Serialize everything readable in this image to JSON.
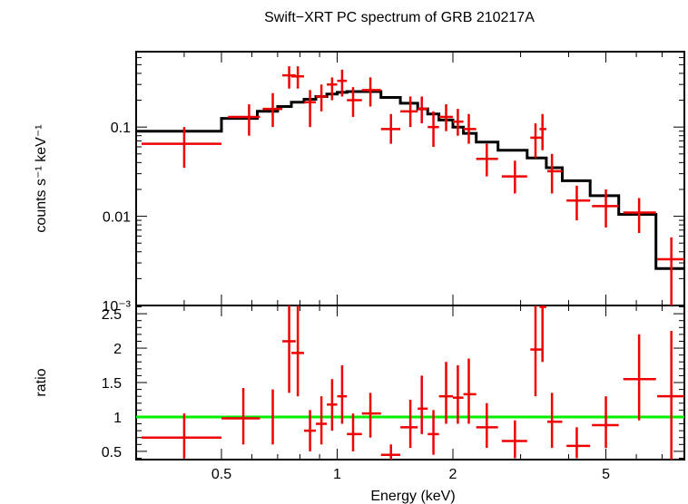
{
  "colors": {
    "data": "#ee0000",
    "model": "#000000",
    "unity": "#00ee00",
    "axes": "#000000"
  },
  "chart_data": [
    {
      "type": "scatter",
      "title": "Swift−XRT PC spectrum of GRB 210217A",
      "ylabel": "counts s⁻¹ keV⁻¹",
      "yscale": "log",
      "xscale": "log",
      "xlim": [
        0.3,
        8.0
      ],
      "ylim": [
        0.001,
        0.7
      ],
      "yticks": [
        {
          "value": 0.1,
          "label": "0.1"
        },
        {
          "value": 0.01,
          "label": "0.01"
        },
        {
          "value": 0.001,
          "label": "10⁻³"
        }
      ],
      "series": [
        {
          "kind": "data",
          "points": [
            {
              "x": 0.4,
              "xlo": 0.31,
              "xhi": 0.5,
              "y": 0.065,
              "ylo": 0.035,
              "yhi": 0.1
            },
            {
              "x": 0.59,
              "xlo": 0.52,
              "xhi": 0.63,
              "y": 0.13,
              "ylo": 0.08,
              "yhi": 0.18
            },
            {
              "x": 0.68,
              "xlo": 0.64,
              "xhi": 0.72,
              "y": 0.16,
              "ylo": 0.1,
              "yhi": 0.24
            },
            {
              "x": 0.75,
              "xlo": 0.72,
              "xhi": 0.78,
              "y": 0.38,
              "ylo": 0.27,
              "yhi": 0.48
            },
            {
              "x": 0.79,
              "xlo": 0.76,
              "xhi": 0.82,
              "y": 0.37,
              "ylo": 0.27,
              "yhi": 0.48
            },
            {
              "x": 0.85,
              "xlo": 0.82,
              "xhi": 0.88,
              "y": 0.19,
              "ylo": 0.1,
              "yhi": 0.26
            },
            {
              "x": 0.91,
              "xlo": 0.88,
              "xhi": 0.94,
              "y": 0.22,
              "ylo": 0.15,
              "yhi": 0.3
            },
            {
              "x": 0.97,
              "xlo": 0.94,
              "xhi": 1.0,
              "y": 0.3,
              "ylo": 0.2,
              "yhi": 0.36
            },
            {
              "x": 1.03,
              "xlo": 1.0,
              "xhi": 1.06,
              "y": 0.33,
              "ylo": 0.22,
              "yhi": 0.44
            },
            {
              "x": 1.1,
              "xlo": 1.06,
              "xhi": 1.16,
              "y": 0.2,
              "ylo": 0.13,
              "yhi": 0.28
            },
            {
              "x": 1.22,
              "xlo": 1.16,
              "xhi": 1.3,
              "y": 0.26,
              "ylo": 0.17,
              "yhi": 0.36
            },
            {
              "x": 1.38,
              "xlo": 1.3,
              "xhi": 1.46,
              "y": 0.095,
              "ylo": 0.065,
              "yhi": 0.14
            },
            {
              "x": 1.55,
              "xlo": 1.46,
              "xhi": 1.62,
              "y": 0.15,
              "ylo": 0.1,
              "yhi": 0.22
            },
            {
              "x": 1.66,
              "xlo": 1.62,
              "xhi": 1.72,
              "y": 0.16,
              "ylo": 0.11,
              "yhi": 0.22
            },
            {
              "x": 1.78,
              "xlo": 1.72,
              "xhi": 1.84,
              "y": 0.1,
              "ylo": 0.06,
              "yhi": 0.15
            },
            {
              "x": 1.92,
              "xlo": 1.84,
              "xhi": 2.0,
              "y": 0.13,
              "ylo": 0.09,
              "yhi": 0.18
            },
            {
              "x": 2.06,
              "xlo": 2.0,
              "xhi": 2.13,
              "y": 0.115,
              "ylo": 0.08,
              "yhi": 0.16
            },
            {
              "x": 2.2,
              "xlo": 2.13,
              "xhi": 2.3,
              "y": 0.095,
              "ylo": 0.065,
              "yhi": 0.14
            },
            {
              "x": 2.45,
              "xlo": 2.3,
              "xhi": 2.62,
              "y": 0.044,
              "ylo": 0.028,
              "yhi": 0.065
            },
            {
              "x": 2.9,
              "xlo": 2.68,
              "xhi": 3.12,
              "y": 0.028,
              "ylo": 0.018,
              "yhi": 0.042
            },
            {
              "x": 3.28,
              "xlo": 3.18,
              "xhi": 3.4,
              "y": 0.076,
              "ylo": 0.045,
              "yhi": 0.11
            },
            {
              "x": 3.42,
              "xlo": 3.36,
              "xhi": 3.5,
              "y": 0.095,
              "ylo": 0.055,
              "yhi": 0.14
            },
            {
              "x": 3.62,
              "xlo": 3.52,
              "xhi": 3.85,
              "y": 0.032,
              "ylo": 0.018,
              "yhi": 0.05
            },
            {
              "x": 4.2,
              "xlo": 3.95,
              "xhi": 4.55,
              "y": 0.015,
              "ylo": 0.009,
              "yhi": 0.022
            },
            {
              "x": 5.0,
              "xlo": 4.6,
              "xhi": 5.4,
              "y": 0.013,
              "ylo": 0.0075,
              "yhi": 0.02
            },
            {
              "x": 6.1,
              "xlo": 5.55,
              "xhi": 6.75,
              "y": 0.011,
              "ylo": 0.0065,
              "yhi": 0.016
            },
            {
              "x": 7.4,
              "xlo": 6.8,
              "xhi": 8.0,
              "y": 0.0033,
              "ylo": 0.001,
              "yhi": 0.0058
            }
          ]
        },
        {
          "kind": "model-step",
          "steps": [
            {
              "x0": 0.3,
              "x1": 0.5,
              "y": 0.09
            },
            {
              "x0": 0.5,
              "x1": 0.62,
              "y": 0.125
            },
            {
              "x0": 0.62,
              "x1": 0.7,
              "y": 0.15
            },
            {
              "x0": 0.7,
              "x1": 0.76,
              "y": 0.17
            },
            {
              "x0": 0.76,
              "x1": 0.82,
              "y": 0.19
            },
            {
              "x0": 0.82,
              "x1": 0.88,
              "y": 0.205
            },
            {
              "x0": 0.88,
              "x1": 0.94,
              "y": 0.22
            },
            {
              "x0": 0.94,
              "x1": 1.0,
              "y": 0.235
            },
            {
              "x0": 1.0,
              "x1": 1.06,
              "y": 0.245
            },
            {
              "x0": 1.06,
              "x1": 1.3,
              "y": 0.25
            },
            {
              "x0": 1.3,
              "x1": 1.46,
              "y": 0.215
            },
            {
              "x0": 1.46,
              "x1": 1.62,
              "y": 0.185
            },
            {
              "x0": 1.62,
              "x1": 1.72,
              "y": 0.16
            },
            {
              "x0": 1.72,
              "x1": 1.84,
              "y": 0.14
            },
            {
              "x0": 1.84,
              "x1": 2.0,
              "y": 0.12
            },
            {
              "x0": 2.0,
              "x1": 2.13,
              "y": 0.1
            },
            {
              "x0": 2.13,
              "x1": 2.3,
              "y": 0.085
            },
            {
              "x0": 2.3,
              "x1": 2.62,
              "y": 0.068
            },
            {
              "x0": 2.62,
              "x1": 3.12,
              "y": 0.055
            },
            {
              "x0": 3.12,
              "x1": 3.5,
              "y": 0.045
            },
            {
              "x0": 3.5,
              "x1": 3.85,
              "y": 0.035
            },
            {
              "x0": 3.85,
              "x1": 4.55,
              "y": 0.025
            },
            {
              "x0": 4.55,
              "x1": 5.4,
              "y": 0.017
            },
            {
              "x0": 5.4,
              "x1": 6.75,
              "y": 0.0105
            },
            {
              "x0": 6.75,
              "x1": 8.0,
              "y": 0.0026
            }
          ]
        }
      ]
    },
    {
      "type": "scatter",
      "xlabel": "Energy (keV)",
      "ylabel": "ratio",
      "xscale": "log",
      "xlim": [
        0.3,
        8.0
      ],
      "ylim": [
        0.38,
        2.62
      ],
      "xticks": [
        {
          "value": 0.5,
          "label": "0.5"
        },
        {
          "value": 1,
          "label": "1"
        },
        {
          "value": 2,
          "label": "2"
        },
        {
          "value": 5,
          "label": "5"
        }
      ],
      "yticks": [
        {
          "value": 0.5,
          "label": "0.5"
        },
        {
          "value": 1,
          "label": "1"
        },
        {
          "value": 1.5,
          "label": "1.5"
        },
        {
          "value": 2,
          "label": "2"
        },
        {
          "value": 2.5,
          "label": "2.5"
        }
      ],
      "reference_line": 1.0,
      "series": [
        {
          "kind": "data",
          "points": [
            {
              "x": 0.4,
              "xlo": 0.31,
              "xhi": 0.5,
              "y": 0.7,
              "ylo": 0.4,
              "yhi": 1.05
            },
            {
              "x": 0.57,
              "xlo": 0.5,
              "xhi": 0.63,
              "y": 0.98,
              "ylo": 0.6,
              "yhi": 1.42
            },
            {
              "x": 0.68,
              "xlo": 0.68,
              "xhi": 0.68,
              "y": 1.0,
              "ylo": 0.6,
              "yhi": 1.4
            },
            {
              "x": 0.75,
              "xlo": 0.72,
              "xhi": 0.78,
              "y": 2.1,
              "ylo": 1.35,
              "yhi": 2.62
            },
            {
              "x": 0.79,
              "xlo": 0.76,
              "xhi": 0.82,
              "y": 1.93,
              "ylo": 1.3,
              "yhi": 2.62
            },
            {
              "x": 0.85,
              "xlo": 0.82,
              "xhi": 0.88,
              "y": 0.8,
              "ylo": 0.5,
              "yhi": 1.1
            },
            {
              "x": 0.91,
              "xlo": 0.88,
              "xhi": 0.94,
              "y": 0.9,
              "ylo": 0.6,
              "yhi": 1.3
            },
            {
              "x": 0.97,
              "xlo": 0.94,
              "xhi": 1.0,
              "y": 1.18,
              "ylo": 0.8,
              "yhi": 1.55
            },
            {
              "x": 1.03,
              "xlo": 1.0,
              "xhi": 1.06,
              "y": 1.3,
              "ylo": 0.9,
              "yhi": 1.75
            },
            {
              "x": 1.1,
              "xlo": 1.06,
              "xhi": 1.16,
              "y": 0.75,
              "ylo": 0.5,
              "yhi": 1.05
            },
            {
              "x": 1.22,
              "xlo": 1.16,
              "xhi": 1.3,
              "y": 1.05,
              "ylo": 0.7,
              "yhi": 1.35
            },
            {
              "x": 1.38,
              "xlo": 1.3,
              "xhi": 1.46,
              "y": 0.45,
              "ylo": 0.38,
              "yhi": 0.6
            },
            {
              "x": 1.55,
              "xlo": 1.46,
              "xhi": 1.62,
              "y": 0.85,
              "ylo": 0.55,
              "yhi": 1.25
            },
            {
              "x": 1.66,
              "xlo": 1.62,
              "xhi": 1.72,
              "y": 1.12,
              "ylo": 0.75,
              "yhi": 1.6
            },
            {
              "x": 1.78,
              "xlo": 1.72,
              "xhi": 1.84,
              "y": 0.75,
              "ylo": 0.45,
              "yhi": 1.1
            },
            {
              "x": 1.92,
              "xlo": 1.84,
              "xhi": 2.0,
              "y": 1.3,
              "ylo": 0.9,
              "yhi": 1.8
            },
            {
              "x": 2.06,
              "xlo": 2.0,
              "xhi": 2.13,
              "y": 1.28,
              "ylo": 0.9,
              "yhi": 1.75
            },
            {
              "x": 2.2,
              "xlo": 2.13,
              "xhi": 2.3,
              "y": 1.33,
              "ylo": 0.9,
              "yhi": 1.85
            },
            {
              "x": 2.45,
              "xlo": 2.3,
              "xhi": 2.62,
              "y": 0.85,
              "ylo": 0.55,
              "yhi": 1.2
            },
            {
              "x": 2.9,
              "xlo": 2.68,
              "xhi": 3.12,
              "y": 0.65,
              "ylo": 0.4,
              "yhi": 0.95
            },
            {
              "x": 3.28,
              "xlo": 3.18,
              "xhi": 3.4,
              "y": 1.98,
              "ylo": 1.3,
              "yhi": 2.62
            },
            {
              "x": 3.42,
              "xlo": 3.36,
              "xhi": 3.5,
              "y": 2.6,
              "ylo": 1.8,
              "yhi": 2.62
            },
            {
              "x": 3.62,
              "xlo": 3.52,
              "xhi": 3.85,
              "y": 0.93,
              "ylo": 0.55,
              "yhi": 1.35
            },
            {
              "x": 4.2,
              "xlo": 3.95,
              "xhi": 4.55,
              "y": 0.58,
              "ylo": 0.4,
              "yhi": 0.85
            },
            {
              "x": 5.0,
              "xlo": 4.6,
              "xhi": 5.4,
              "y": 0.88,
              "ylo": 0.55,
              "yhi": 1.3
            },
            {
              "x": 6.1,
              "xlo": 5.55,
              "xhi": 6.75,
              "y": 1.55,
              "ylo": 0.95,
              "yhi": 2.2
            },
            {
              "x": 7.4,
              "xlo": 6.8,
              "xhi": 8.0,
              "y": 1.3,
              "ylo": 0.38,
              "yhi": 2.25
            }
          ]
        }
      ]
    }
  ]
}
